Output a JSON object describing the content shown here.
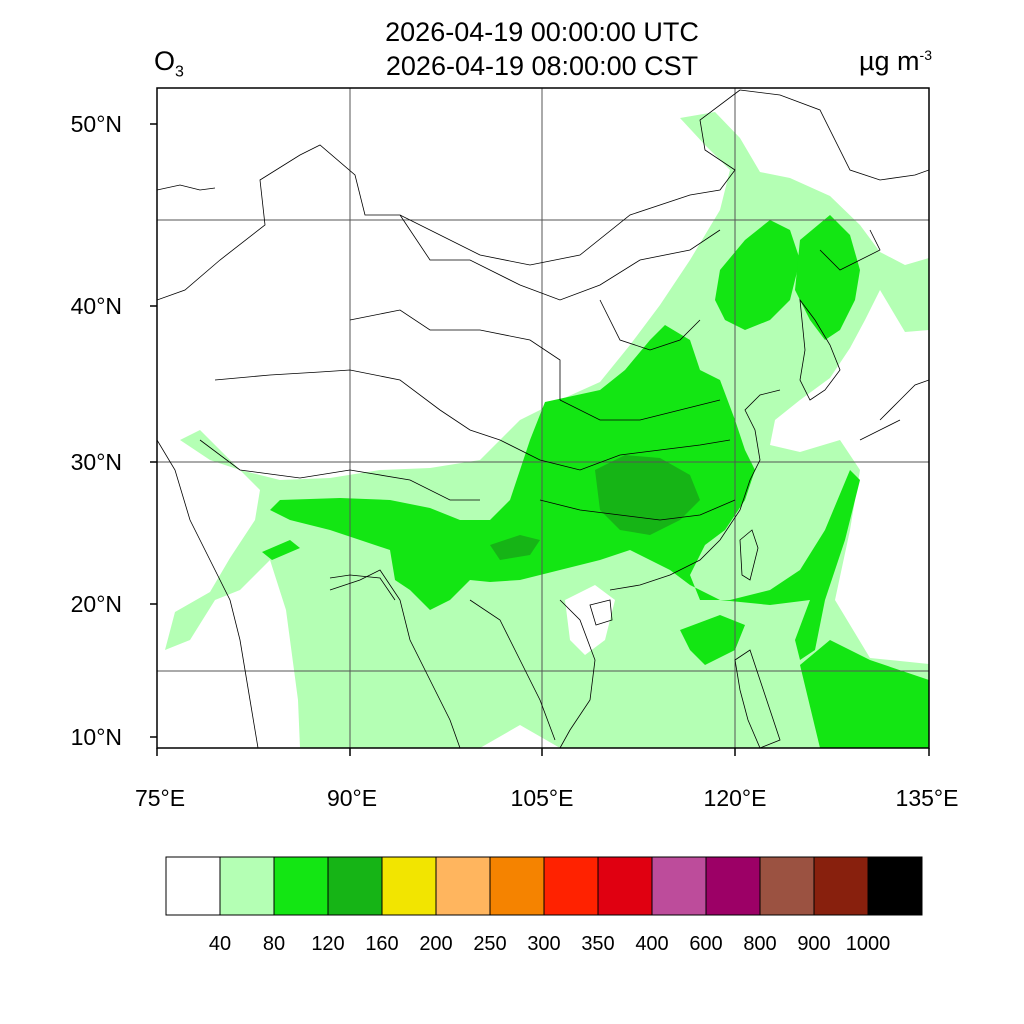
{
  "title_utc": "2026-04-19 00:00:00 UTC",
  "title_cst": "2026-04-19 08:00:00 CST",
  "species": {
    "base": "O",
    "sub": "3"
  },
  "units": {
    "base": "µg m",
    "exp": "-3"
  },
  "lat_labels": [
    "50°N",
    "40°N",
    "30°N",
    "20°N",
    "10°N"
  ],
  "lon_labels": [
    "75°E",
    "90°E",
    "105°E",
    "120°E",
    "135°E"
  ],
  "legend": {
    "colors": [
      "#ffffff",
      "#b4ffb4",
      "#13e613",
      "#16b416",
      "#f2e500",
      "#ffb55e",
      "#f58300",
      "#ff2200",
      "#e00011",
      "#bd4c9b",
      "#9c0066",
      "#9b5241",
      "#88200d",
      "#000000"
    ],
    "labels": [
      "40",
      "80",
      "120",
      "160",
      "200",
      "250",
      "300",
      "350",
      "400",
      "600",
      "800",
      "900",
      "1000"
    ]
  },
  "colors": {
    "light_green": "#b4ffb4",
    "green": "#13e613",
    "dark_green": "#16b416"
  }
}
